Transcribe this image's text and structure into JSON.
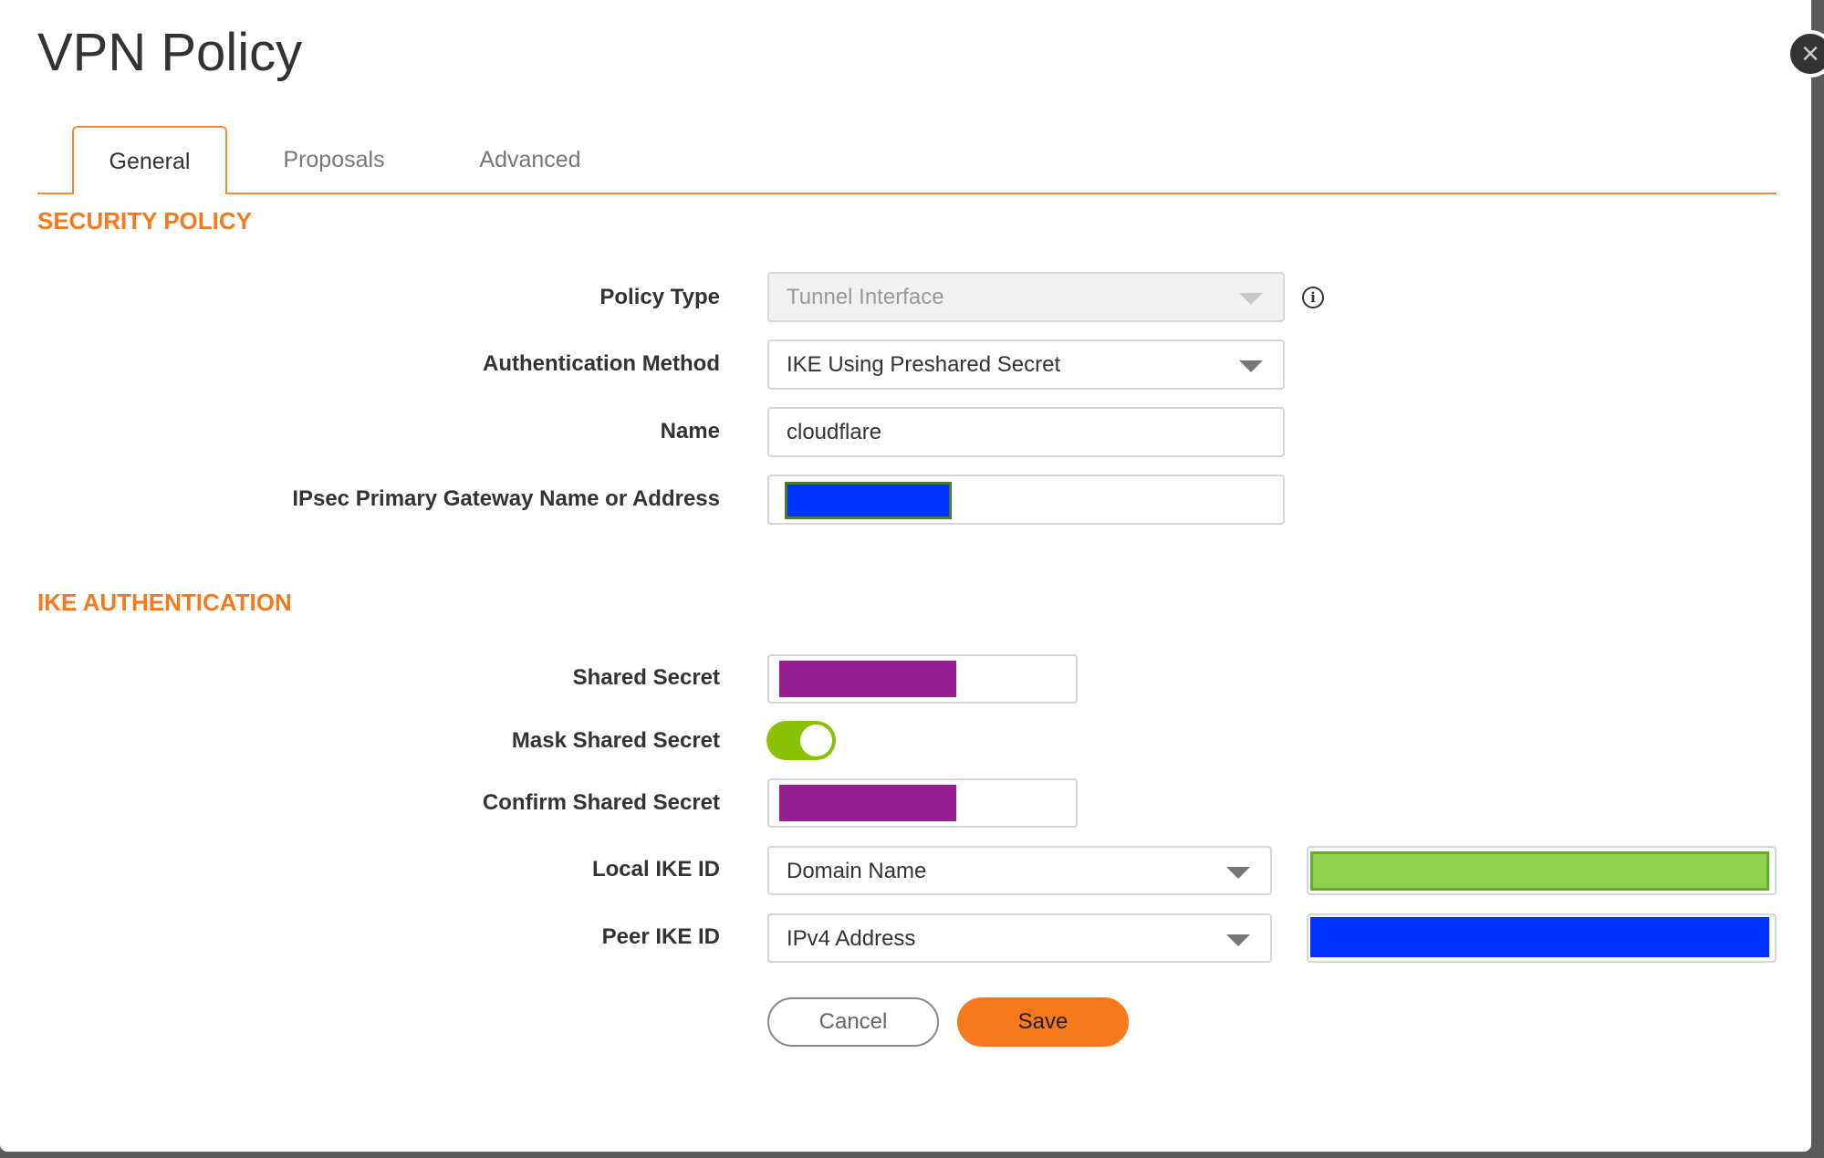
{
  "dialog": {
    "title": "VPN Policy",
    "close_icon": "close-icon"
  },
  "tabs": [
    {
      "label": "General",
      "active": true
    },
    {
      "label": "Proposals",
      "active": false
    },
    {
      "label": "Advanced",
      "active": false
    }
  ],
  "security_policy": {
    "heading": "SECURITY POLICY",
    "policy_type": {
      "label": "Policy Type",
      "value": "Tunnel Interface",
      "disabled": true
    },
    "auth_method": {
      "label": "Authentication Method",
      "value": "IKE Using Preshared Secret"
    },
    "name": {
      "label": "Name",
      "value": "cloudflare"
    },
    "gateway": {
      "label": "IPsec Primary Gateway Name or Address",
      "value_redacted": true,
      "redaction_color": "#0033ff"
    }
  },
  "ike_auth": {
    "heading": "IKE AUTHENTICATION",
    "shared_secret": {
      "label": "Shared Secret",
      "redaction_color": "#951f91"
    },
    "mask_shared_secret": {
      "label": "Mask Shared Secret",
      "on": true,
      "color": "#8ac100"
    },
    "confirm_shared_secret": {
      "label": "Confirm Shared Secret",
      "redaction_color": "#951f91"
    },
    "local_ike_id": {
      "label": "Local IKE ID",
      "type": "Domain Name",
      "redaction_color": "#92d050"
    },
    "peer_ike_id": {
      "label": "Peer IKE ID",
      "type": "IPv4 Address",
      "redaction_color": "#0033ff"
    }
  },
  "buttons": {
    "cancel": "Cancel",
    "save": "Save"
  },
  "colors": {
    "accent": "#f7791e"
  }
}
